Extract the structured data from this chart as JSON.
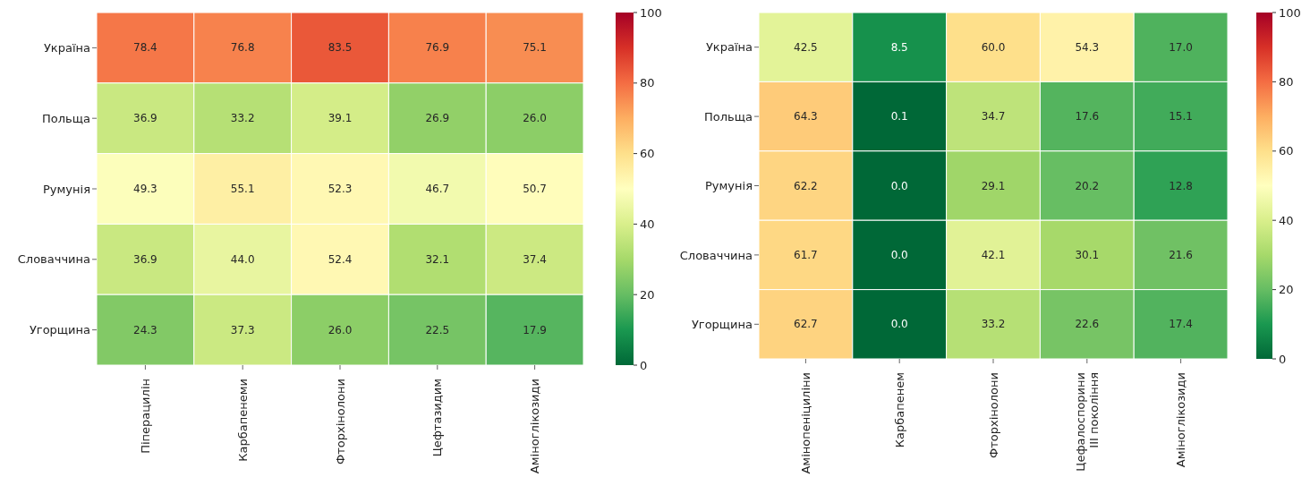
{
  "chart_data": [
    {
      "type": "heatmap",
      "categories": [
        "Піперацилін",
        "Карбапенеми",
        "Фторхінолони",
        "Цефтазидим",
        "Аміноглікозиди"
      ],
      "y_categories": [
        "Україна",
        "Польща",
        "Румунія",
        "Словаччина",
        "Угорщина"
      ],
      "cells": [
        [
          78.4,
          76.8,
          83.5,
          76.9,
          75.1
        ],
        [
          36.9,
          33.2,
          39.1,
          26.9,
          26.0
        ],
        [
          49.3,
          55.1,
          52.3,
          46.7,
          50.7
        ],
        [
          36.9,
          44.0,
          52.4,
          32.1,
          37.4
        ],
        [
          24.3,
          37.3,
          26.0,
          22.5,
          17.9
        ]
      ],
      "cell_labels": [
        [
          "78.4",
          "76.8",
          "83.5",
          "76.9",
          "75.1"
        ],
        [
          "36.9",
          "33.2",
          "39.1",
          "26.9",
          "26.0"
        ],
        [
          "49.3",
          "55.1",
          "52.3",
          "46.7",
          "50.7"
        ],
        [
          "36.9",
          "44.0",
          "52.4",
          "32.1",
          "37.4"
        ],
        [
          "24.3",
          "37.3",
          "26.0",
          "22.5",
          "17.9"
        ]
      ],
      "clim": [
        0,
        100
      ],
      "cticks": [
        0,
        20,
        40,
        60,
        80,
        100
      ],
      "data_labels": true
    },
    {
      "type": "heatmap",
      "categories": [
        "Амінопеніциліни",
        "Карбапенем",
        "Фторхінолони",
        "Цефалоспорини\nIII покоління",
        "Аміноглікозиди"
      ],
      "y_categories": [
        "Україна",
        "Польща",
        "Румунія",
        "Словаччина",
        "Угорщина"
      ],
      "cells": [
        [
          42.5,
          8.5,
          60.0,
          54.3,
          17.0
        ],
        [
          64.3,
          0.1,
          34.7,
          17.6,
          15.1
        ],
        [
          62.2,
          0.0,
          29.1,
          20.2,
          12.8
        ],
        [
          61.7,
          0.0,
          42.1,
          30.1,
          21.6
        ],
        [
          62.7,
          0.0,
          33.2,
          22.6,
          17.4
        ]
      ],
      "cell_labels": [
        [
          "42.5",
          "8.5",
          "60.0",
          "54.3",
          "17.0"
        ],
        [
          "64.3",
          "0.1",
          "34.7",
          "17.6",
          "15.1"
        ],
        [
          "62.2",
          "0.0",
          "29.1",
          "20.2",
          "12.8"
        ],
        [
          "61.7",
          "0.0",
          "42.1",
          "30.1",
          "21.6"
        ],
        [
          "62.7",
          "0.0",
          "33.2",
          "22.6",
          "17.4"
        ]
      ],
      "clim": [
        0,
        100
      ],
      "cticks": [
        0,
        20,
        40,
        60,
        80,
        100
      ],
      "data_labels": true
    }
  ]
}
